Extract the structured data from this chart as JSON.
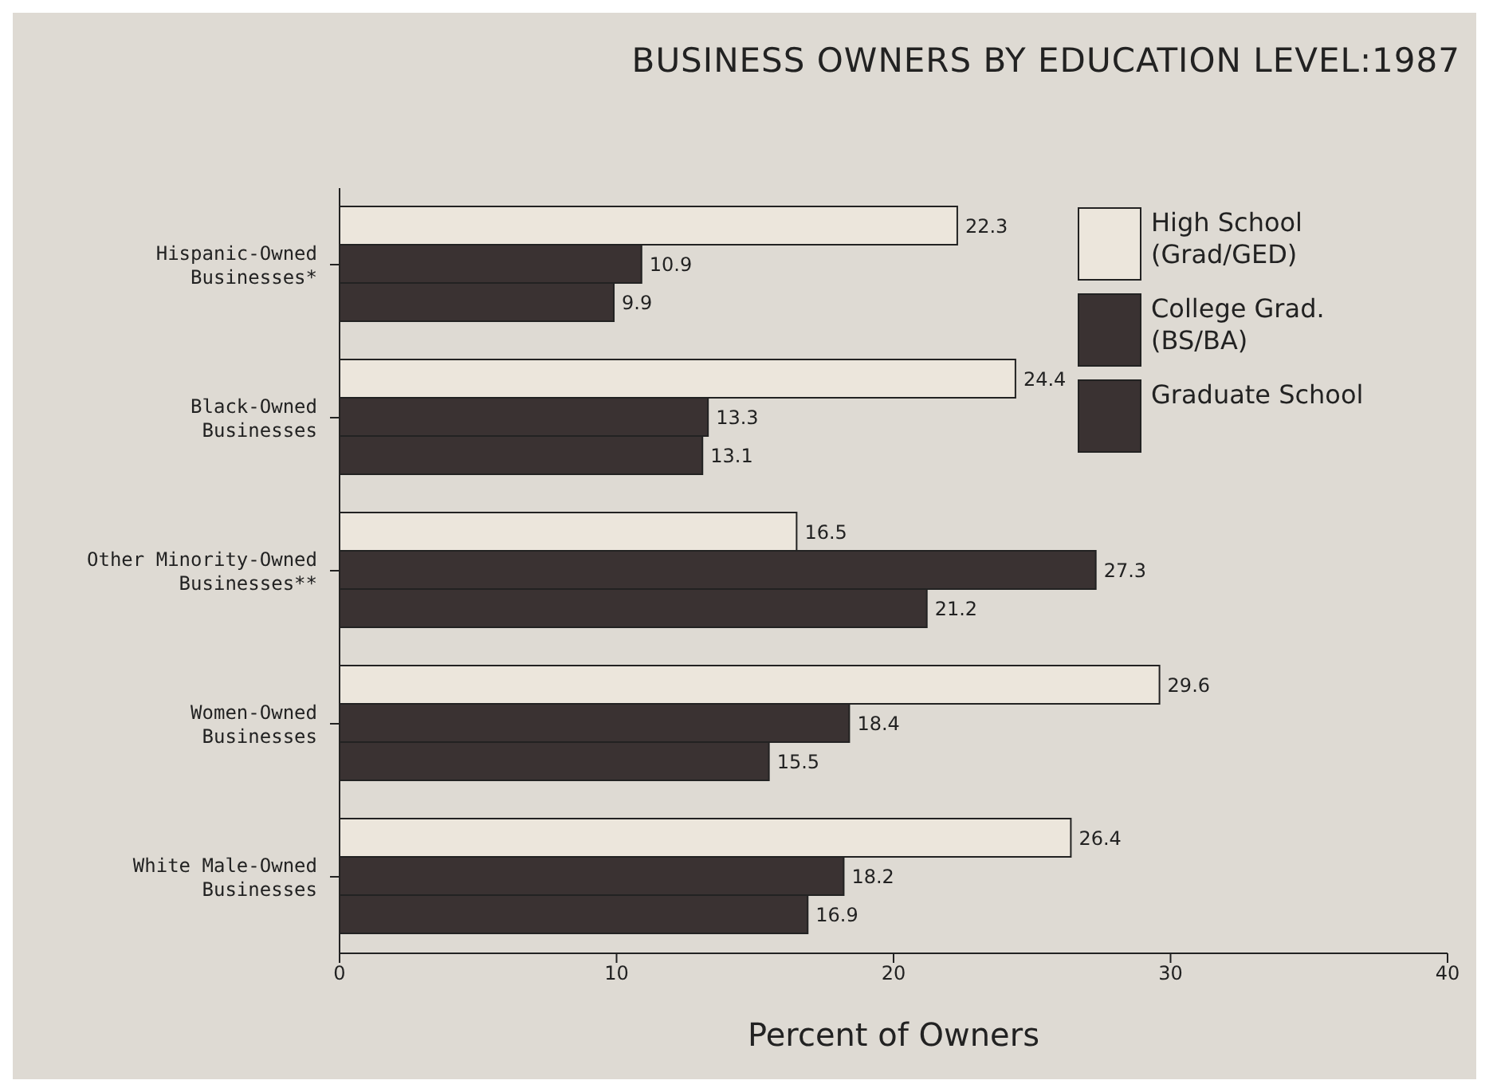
{
  "chart_data": {
    "type": "bar",
    "orientation": "horizontal",
    "title": "BUSINESS OWNERS BY EDUCATION LEVEL:1987",
    "xlabel": "Percent of Owners",
    "categories": [
      "Hispanic-Owned Businesses*",
      "Black-Owned Businesses",
      "Other Minority-Owned Businesses**",
      "Women-Owned Businesses",
      "White Male-Owned Businesses"
    ],
    "series": [
      {
        "name": "High School (Grad/GED)",
        "color": "#ece6dc",
        "values": [
          22.3,
          24.4,
          16.5,
          29.6,
          26.4
        ]
      },
      {
        "name": "College Grad. (BS/BA)",
        "color": "#3a3232",
        "values": [
          10.9,
          13.3,
          27.3,
          18.4,
          18.2
        ]
      },
      {
        "name": "Graduate School",
        "color": "#3a3232",
        "values": [
          9.9,
          13.1,
          21.2,
          15.5,
          16.9
        ]
      }
    ],
    "xlim": [
      0,
      40
    ],
    "xticks": [
      0,
      10,
      20,
      30,
      40
    ],
    "legend": "top right",
    "data_labels": true
  }
}
